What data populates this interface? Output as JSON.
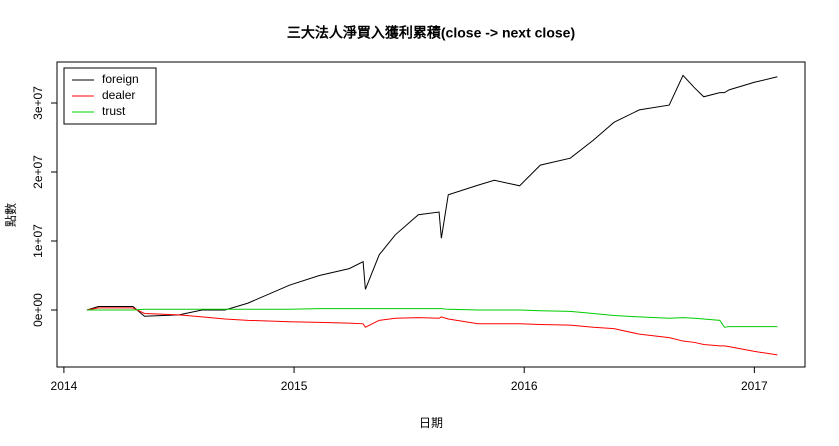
{
  "chart_data": {
    "type": "line",
    "title": "三大法人淨買入獲利累積(close -> next close)",
    "x_label": "日期",
    "y_label": "點數",
    "x": [
      2014.1,
      2014.15,
      2014.3,
      2014.35,
      2014.5,
      2014.6,
      2014.7,
      2014.8,
      2014.98,
      2015.11,
      2015.24,
      2015.3,
      2015.31,
      2015.37,
      2015.44,
      2015.54,
      2015.63,
      2015.64,
      2015.67,
      2015.8,
      2015.87,
      2015.98,
      2016.07,
      2016.2,
      2016.3,
      2016.39,
      2016.5,
      2016.63,
      2016.69,
      2016.74,
      2016.78,
      2016.85,
      2016.87,
      2016.89,
      2017.0,
      2017.1
    ],
    "series": [
      {
        "name": "foreign",
        "color": "#000000",
        "values": [
          0,
          500000,
          500000,
          -900000,
          -700000,
          0,
          0,
          1000000,
          3600000,
          5000000,
          6000000,
          7000000,
          3000000,
          8000000,
          10900000,
          13800000,
          14200000,
          10400000,
          16700000,
          18100000,
          18800000,
          18000000,
          21000000,
          22000000,
          24600000,
          27200000,
          29000000,
          29700000,
          34000000,
          32200000,
          30900000,
          31500000,
          31500000,
          31900000,
          33000000,
          33800000
        ]
      },
      {
        "name": "dealer",
        "color": "#ff0000",
        "values": [
          0,
          300000,
          300000,
          -500000,
          -700000,
          -1000000,
          -1300000,
          -1500000,
          -1700000,
          -1800000,
          -1900000,
          -2000000,
          -2500000,
          -1500000,
          -1200000,
          -1100000,
          -1200000,
          -1000000,
          -1300000,
          -2000000,
          -2000000,
          -2000000,
          -2100000,
          -2200000,
          -2500000,
          -2700000,
          -3500000,
          -4000000,
          -4500000,
          -4700000,
          -5000000,
          -5200000,
          -5200000,
          -5300000,
          -6000000,
          -6500000
        ]
      },
      {
        "name": "trust",
        "color": "#00cc00",
        "values": [
          0,
          0,
          0,
          100000,
          100000,
          100000,
          100000,
          100000,
          100000,
          200000,
          200000,
          200000,
          200000,
          200000,
          200000,
          200000,
          200000,
          200000,
          100000,
          0,
          0,
          0,
          -100000,
          -200000,
          -500000,
          -800000,
          -1000000,
          -1200000,
          -1100000,
          -1200000,
          -1300000,
          -1500000,
          -2500000,
          -2400000,
          -2400000,
          -2400000
        ]
      }
    ],
    "xlim": [
      2013.97,
      2017.22
    ],
    "xticks": [
      2014,
      2015,
      2016,
      2017
    ],
    "ylim": [
      -8260000,
      35940000
    ],
    "yticks": [
      {
        "value": 0,
        "label": "0e+00"
      },
      {
        "value": 10000000,
        "label": "1e+07"
      },
      {
        "value": 20000000,
        "label": "2e+07"
      },
      {
        "value": 30000000,
        "label": "3e+07"
      }
    ],
    "legend": "top-left"
  }
}
